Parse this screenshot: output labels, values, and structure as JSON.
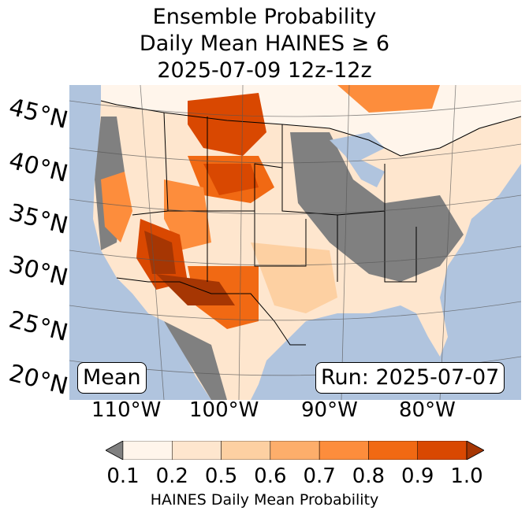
{
  "title": {
    "line1": "Ensemble Probability",
    "line2": "Daily Mean HAINES ≥ 6",
    "line3": "2025-07-09 12z-12z"
  },
  "latitude_labels": [
    "45°N",
    "40°N",
    "35°N",
    "30°N",
    "25°N",
    "20°N"
  ],
  "longitude_labels": [
    "110°W",
    "100°W",
    "90°W",
    "80°W"
  ],
  "boxes": {
    "mean": "Mean",
    "run": "Run: 2025-07-07"
  },
  "colorbar": {
    "ticks": [
      "0.1",
      "0.2",
      "0.5",
      "0.6",
      "0.7",
      "0.8",
      "0.9",
      "1.0"
    ],
    "label": "HAINES Daily Mean Probability",
    "under_color": "#808080",
    "colors": [
      "#fff5eb",
      "#fee6ce",
      "#fdd0a2",
      "#fdae6b",
      "#fd8d3c",
      "#f16913",
      "#d94801",
      "#a63603"
    ]
  },
  "colors": {
    "ocean": "#b0c4de",
    "missing": "#808080"
  }
}
